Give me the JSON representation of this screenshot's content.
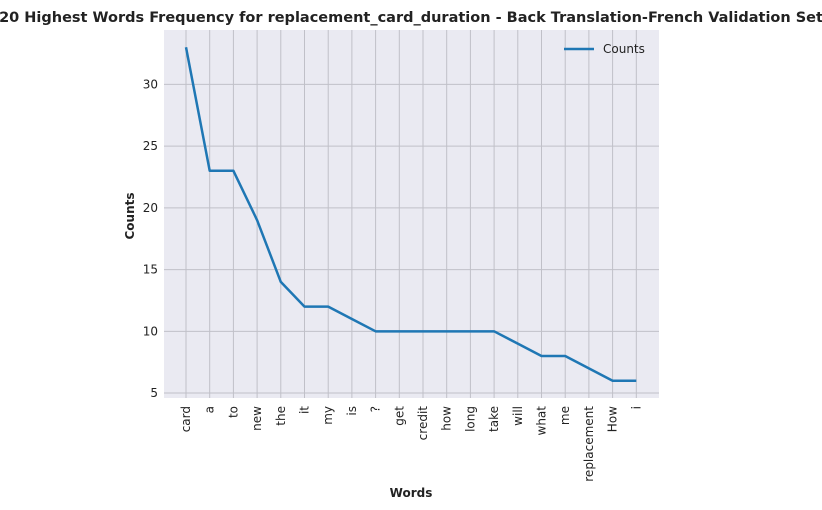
{
  "chart_data": {
    "type": "line",
    "title": "20 Highest Words Frequency for replacement_card_duration - Back Translation-French Validation Set",
    "xlabel": "Words",
    "ylabel": "Counts",
    "categories": [
      "card",
      "a",
      "to",
      "new",
      "the",
      "it",
      "my",
      "is",
      "?",
      "get",
      "credit",
      "how",
      "long",
      "take",
      "will",
      "what",
      "me",
      "replacement",
      "How",
      "i"
    ],
    "series": [
      {
        "name": "Counts",
        "values": [
          33,
          23,
          23,
          19,
          14,
          12,
          12,
          11,
          10,
          10,
          10,
          10,
          10,
          10,
          9,
          8,
          8,
          7,
          6,
          6
        ]
      }
    ],
    "yticks": [
      5,
      10,
      15,
      20,
      25,
      30
    ],
    "ylim": [
      4.6,
      34.4
    ],
    "grid": true,
    "legend": "top-right",
    "colors": {
      "line": "#1f77b4",
      "plot_bg": "#eaeaf2",
      "grid": "#c0c0c8"
    }
  }
}
